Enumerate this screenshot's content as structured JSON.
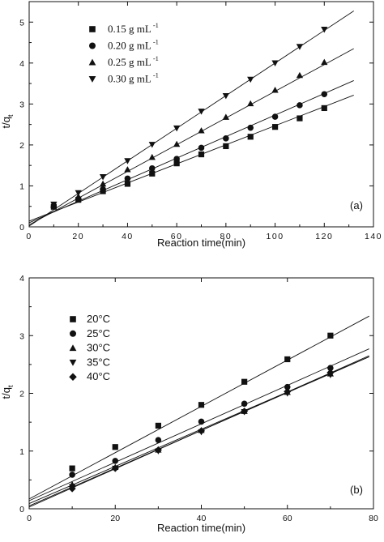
{
  "chart_data": [
    {
      "type": "scatter",
      "panel_label": "(a)",
      "xlabel": "Reaction time(min)",
      "ylabel": "t/q",
      "ylabel_sub": "t",
      "xlim": [
        0,
        140
      ],
      "ylim": [
        0,
        5.5
      ],
      "xticks": [
        0,
        20,
        40,
        60,
        80,
        100,
        120,
        140
      ],
      "yticks": [
        0,
        1,
        2,
        3,
        4,
        5
      ],
      "x": [
        10,
        20,
        30,
        40,
        50,
        60,
        70,
        80,
        90,
        100,
        110,
        120
      ],
      "series": [
        {
          "name": "0.15 g mL",
          "superscript": "-1",
          "marker": "square",
          "values": [
            0.49,
            0.66,
            0.87,
            1.05,
            1.3,
            1.55,
            1.77,
            1.97,
            2.2,
            2.44,
            2.65,
            2.9
          ],
          "fit": [
            0.14,
            0.0233
          ]
        },
        {
          "name": "0.20 g mL",
          "superscript": "-1",
          "marker": "circle",
          "values": [
            0.5,
            0.68,
            0.92,
            1.18,
            1.43,
            1.66,
            1.93,
            2.16,
            2.42,
            2.69,
            2.97,
            3.24
          ],
          "fit": [
            0.1,
            0.0263
          ]
        },
        {
          "name": "0.25 g mL",
          "superscript": "-1",
          "marker": "triangle-up",
          "values": [
            0.52,
            0.74,
            1.05,
            1.4,
            1.7,
            2.02,
            2.35,
            2.68,
            3.01,
            3.34,
            3.7,
            4.02
          ],
          "fit": [
            0.05,
            0.0326
          ]
        },
        {
          "name": "0.30 g mL",
          "superscript": "-1",
          "marker": "triangle-down",
          "values": [
            0.55,
            0.83,
            1.22,
            1.61,
            2.01,
            2.41,
            2.82,
            3.2,
            3.6,
            4.0,
            4.4,
            4.82
          ],
          "fit": [
            0.02,
            0.0398
          ]
        }
      ]
    },
    {
      "type": "scatter",
      "panel_label": "(b)",
      "xlabel": "Reaction time(min)",
      "ylabel": "t/q",
      "ylabel_sub": "t",
      "xlim": [
        0,
        80
      ],
      "ylim": [
        0,
        4
      ],
      "xticks": [
        0,
        20,
        40,
        60,
        80
      ],
      "yticks": [
        0,
        1,
        2,
        3,
        4
      ],
      "x": [
        10,
        20,
        30,
        40,
        50,
        60,
        70
      ],
      "series": [
        {
          "name": "20°C",
          "marker": "square",
          "values": [
            0.7,
            1.07,
            1.44,
            1.8,
            2.2,
            2.59,
            3.0
          ],
          "fit": [
            0.17,
            0.0401
          ]
        },
        {
          "name": "25°C",
          "marker": "circle",
          "values": [
            0.59,
            0.83,
            1.19,
            1.51,
            1.82,
            2.11,
            2.44
          ],
          "fit": [
            0.14,
            0.0333
          ]
        },
        {
          "name": "30°C",
          "marker": "triangle-up",
          "values": [
            0.42,
            0.72,
            1.02,
            1.36,
            1.69,
            2.02,
            2.34
          ],
          "fit": [
            0.09,
            0.0322
          ]
        },
        {
          "name": "35°C",
          "marker": "triangle-down",
          "values": [
            0.38,
            0.7,
            1.0,
            1.33,
            1.68,
            2.0,
            2.32
          ],
          "fit": [
            0.05,
            0.0327
          ]
        },
        {
          "name": "40°C",
          "marker": "diamond",
          "values": [
            0.35,
            0.7,
            1.02,
            1.35,
            1.69,
            2.03,
            2.36
          ],
          "fit": [
            0.03,
            0.0332
          ]
        }
      ]
    }
  ]
}
